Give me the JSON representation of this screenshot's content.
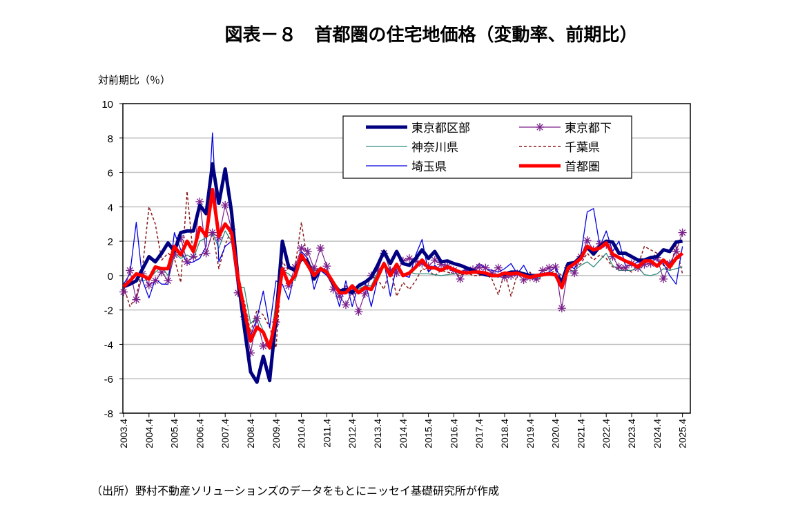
{
  "chart_data": {
    "type": "line",
    "title": "図表－８　首都圏の住宅地価格（変動率、前期比）",
    "ylabel": "対前期比（％）",
    "xlabel": "",
    "ylim": [
      -8,
      10
    ],
    "yticks": [
      "10",
      "8",
      "6",
      "4",
      "2",
      "0",
      "-2",
      "-4",
      "-6",
      "-8"
    ],
    "x_ticks": [
      "2003.4",
      "2004.4",
      "2005.4",
      "2006.4",
      "2007.4",
      "2008.4",
      "2009.4",
      "2010.4",
      "2011.4",
      "2012.4",
      "2013.4",
      "2014.4",
      "2015.4",
      "2016.4",
      "2017.4",
      "2018.4",
      "2019.4",
      "2020.4",
      "2021.4",
      "2022.4",
      "2023.4",
      "2024.4",
      "2025.4"
    ],
    "frequency": "quarterly",
    "grid": true,
    "legend_placement": "top-right",
    "series": [
      {
        "name": "千葉県",
        "color": "#8B1A1A",
        "style": "dashed",
        "values": [
          -0.6,
          -1.8,
          -1.2,
          0.5,
          4.0,
          3.0,
          0.9,
          1.3,
          1.0,
          -0.4,
          4.9,
          1.0,
          1.2,
          1.3,
          2.5,
          0.4,
          1.8,
          2.7,
          -0.7,
          -1.5,
          -3.3,
          -2.0,
          -2.3,
          -3.0,
          -4.2,
          0.8,
          0.3,
          0.5,
          3.1,
          0.7,
          0.2,
          0.5,
          0.3,
          -0.3,
          -0.9,
          -0.6,
          -1.0,
          -0.8,
          -0.6,
          0.0,
          -0.2,
          -0.8,
          0.5,
          -1.2,
          -0.4,
          -0.8,
          -0.3,
          0.4,
          0.3,
          0.0,
          0.3,
          0.2,
          0.1,
          0.0,
          0.2,
          0.0,
          0.0,
          0.1,
          -0.2,
          -1.1,
          0.2,
          -1.2,
          0.1,
          0.0,
          0.2,
          -0.3,
          0.0,
          0.1,
          0.3,
          0.0,
          0.4,
          0.5,
          0.7,
          1.3,
          0.9,
          1.2,
          1.0,
          0.5,
          0.4,
          0.4,
          0.2,
          0.6,
          1.7,
          1.5,
          1.3,
          0.6,
          0.3,
          1.8,
          0.1
        ]
      },
      {
        "name": "神奈川県",
        "color": "#2E8B7A",
        "style": "thin",
        "values": [
          -0.7,
          -0.5,
          -0.2,
          -0.3,
          -0.2,
          0.2,
          0.5,
          0.0,
          1.3,
          1.0,
          1.2,
          1.0,
          2.0,
          2.2,
          2.5,
          1.6,
          2.6,
          2.0,
          -0.7,
          -0.7,
          -2.8,
          -2.4,
          -3.2,
          -4.3,
          -1.5,
          0.3,
          0.1,
          -0.3,
          0.9,
          0.8,
          0.3,
          0.3,
          0.1,
          -0.3,
          -0.8,
          -0.9,
          -0.7,
          -0.8,
          -0.6,
          -0.6,
          0.2,
          0.6,
          0.2,
          0.4,
          0.1,
          0.2,
          0.1,
          0.1,
          0.1,
          0.05,
          0.0,
          0.05,
          0.1,
          0.1,
          0.1,
          0.15,
          0.1,
          0.0,
          0.0,
          -0.1,
          0.05,
          0.0,
          0.05,
          0.0,
          0.0,
          -0.3,
          0.05,
          0.0,
          0.1,
          -0.2,
          0.2,
          0.3,
          0.6,
          0.8,
          0.5,
          0.9,
          1.3,
          0.6,
          0.3,
          0.3,
          0.3,
          0.5,
          0.05,
          0.0,
          0.1,
          0.4,
          0.3,
          0.4,
          0.5
        ]
      },
      {
        "name": "埼玉県",
        "color": "#0000E0",
        "style": "thin",
        "values": [
          -0.5,
          0.1,
          3.1,
          -0.3,
          -1.3,
          -0.2,
          -0.5,
          -0.5,
          2.5,
          1.5,
          0.7,
          0.8,
          1.0,
          1.7,
          8.3,
          0.8,
          1.7,
          2.0,
          -0.8,
          -2.5,
          -3.5,
          -2.5,
          -0.9,
          -3.0,
          -0.3,
          -0.5,
          -1.4,
          0.3,
          1.4,
          1.0,
          -0.8,
          0.3,
          0.0,
          -0.5,
          -1.8,
          -0.3,
          -1.8,
          -0.5,
          -0.3,
          -1.8,
          -0.2,
          0.8,
          -1.2,
          0.6,
          0.0,
          -0.1,
          1.2,
          2.1,
          0.2,
          0.6,
          0.3,
          0.6,
          0.4,
          0.2,
          0.4,
          0.3,
          0.7,
          0.4,
          0.3,
          0.2,
          0.4,
          0.7,
          0.1,
          0.6,
          -0.1,
          0.0,
          0.1,
          0.2,
          0.5,
          -0.3,
          0.6,
          0.4,
          1.2,
          3.7,
          3.9,
          1.7,
          2.6,
          1.4,
          2.0,
          0.6,
          0.6,
          0.8,
          0.7,
          1.0,
          0.9,
          0.7,
          0.0,
          -0.5,
          1.7
        ]
      },
      {
        "name": "東京都下",
        "color": "#7A1F8A",
        "style": "star",
        "values": [
          -0.95,
          0.3,
          -1.4,
          0.1,
          -0.55,
          -0.3,
          0.2,
          -0.3,
          1.2,
          2.2,
          0.8,
          1.1,
          4.3,
          1.3,
          2.5,
          2.2,
          4.1,
          2.7,
          -1.0,
          -2.4,
          -4.5,
          -2.5,
          -4.1,
          -4.0,
          -2.7,
          0.3,
          -0.6,
          0.5,
          1.6,
          1.4,
          0.4,
          1.6,
          0.55,
          -0.8,
          -1.2,
          -1.7,
          -0.9,
          -2.1,
          -1.05,
          0.0,
          0.3,
          1.3,
          0.3,
          0.15,
          0.85,
          1.0,
          0.85,
          0.7,
          0.55,
          0.9,
          0.65,
          0.55,
          0.3,
          -0.2,
          0.3,
          0.35,
          0.5,
          0.45,
          0.15,
          0.45,
          -0.1,
          0.0,
          0.1,
          -0.25,
          -0.1,
          -0.2,
          0.3,
          0.45,
          0.5,
          -1.9,
          0.45,
          0.15,
          1.1,
          2.05,
          1.5,
          1.85,
          1.8,
          1.1,
          0.5,
          0.45,
          0.7,
          0.45,
          0.65,
          0.7,
          1.05,
          -0.2,
          0.7,
          1.4,
          2.5
        ]
      },
      {
        "name": "東京都区部",
        "color": "#000080",
        "style": "thick",
        "values": [
          -0.65,
          -0.5,
          -0.3,
          0.4,
          1.1,
          0.8,
          1.3,
          1.9,
          1.4,
          2.5,
          2.6,
          2.6,
          4.1,
          3.6,
          6.5,
          4.2,
          6.2,
          3.7,
          -0.1,
          -3.0,
          -5.6,
          -6.2,
          -4.7,
          -6.1,
          -2.5,
          2.0,
          0.5,
          0.3,
          1.0,
          0.8,
          -0.2,
          0.4,
          0.2,
          -0.5,
          -0.9,
          -0.8,
          -1.0,
          -0.6,
          -0.4,
          -0.1,
          0.6,
          1.4,
          0.7,
          1.4,
          0.7,
          0.6,
          1.0,
          1.5,
          1.0,
          1.4,
          0.8,
          0.85,
          0.7,
          0.6,
          0.45,
          0.3,
          0.15,
          0.05,
          0.0,
          0.0,
          0.1,
          0.2,
          0.2,
          0.1,
          0.0,
          0.0,
          0.05,
          0.1,
          0.05,
          -0.4,
          0.7,
          0.75,
          1.1,
          1.65,
          1.25,
          1.7,
          2.0,
          1.95,
          1.3,
          1.3,
          1.1,
          0.9,
          0.9,
          1.05,
          1.1,
          1.5,
          1.4,
          1.95,
          2.0
        ]
      },
      {
        "name": "首都圏",
        "color": "#FF0000",
        "style": "thick",
        "values": [
          -0.65,
          -0.3,
          0.1,
          0.0,
          -0.2,
          0.5,
          0.4,
          0.4,
          1.7,
          1.2,
          2.0,
          1.4,
          2.8,
          2.3,
          5.0,
          2.3,
          3.0,
          2.5,
          -0.1,
          -2.0,
          -3.8,
          -3.0,
          -3.3,
          -4.2,
          -2.4,
          0.4,
          -0.5,
          0.0,
          1.2,
          0.6,
          0.0,
          0.4,
          0.2,
          -0.4,
          -1.0,
          -1.0,
          -0.6,
          -1.0,
          -0.7,
          -0.8,
          -0.1,
          0.7,
          0.0,
          0.65,
          0.0,
          0.15,
          0.5,
          0.9,
          0.45,
          0.45,
          0.3,
          0.5,
          0.35,
          0.2,
          0.15,
          0.2,
          0.2,
          0.15,
          0.0,
          0.0,
          0.15,
          0.1,
          0.15,
          0.0,
          -0.1,
          0.0,
          0.05,
          0.1,
          0.05,
          -0.7,
          0.45,
          0.7,
          1.0,
          1.7,
          1.5,
          1.6,
          1.9,
          1.25,
          1.05,
          0.85,
          0.7,
          0.5,
          0.85,
          0.85,
          0.55,
          0.9,
          0.5,
          1.0,
          1.3
        ]
      }
    ],
    "legend_order": [
      "東京都区部",
      "東京都下",
      "神奈川県",
      "千葉県",
      "埼玉県",
      "首都圏"
    ]
  },
  "source": "（出所）野村不動産ソリューションズのデータをもとにニッセイ基礎研究所が作成"
}
